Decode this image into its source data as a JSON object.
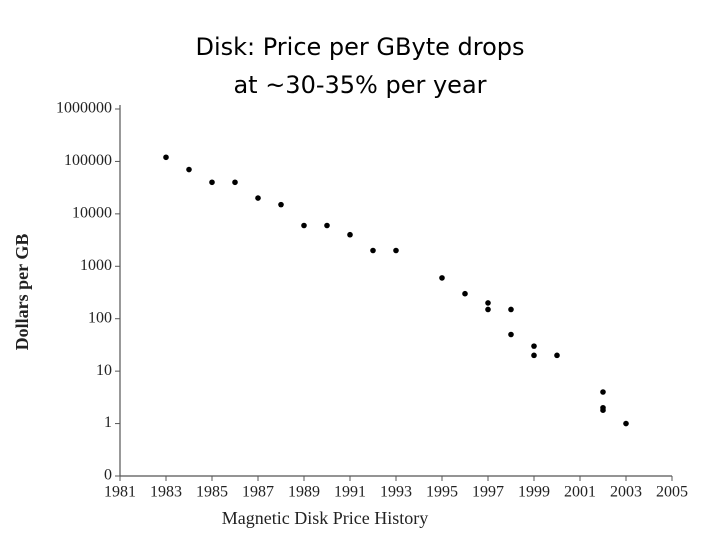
{
  "chart_data": {
    "type": "scatter",
    "title": [
      "Disk: Price per GByte drops",
      "at ~30-35% per year"
    ],
    "x_label": "Magnetic Disk Price History",
    "y_label": "Dollars per GB",
    "x": [
      1983,
      1984,
      1985,
      1986,
      1987,
      1988,
      1989,
      1990,
      1991,
      1992,
      1993,
      1995,
      1996,
      1997,
      1997,
      1998,
      1998,
      1999,
      1999,
      2000,
      2002,
      2002,
      2002,
      2003
    ],
    "values": [
      120000,
      70000,
      40000,
      40000,
      20000,
      15000,
      6000,
      6000,
      4000,
      2000,
      2000,
      600,
      300,
      200,
      150,
      150,
      50,
      30,
      20,
      20,
      4,
      2,
      1.8,
      1
    ],
    "color": "#000000",
    "log_y": true,
    "grid": false,
    "xlim": [
      1981,
      2005
    ],
    "xticks": [
      1981,
      1983,
      1985,
      1987,
      1989,
      1991,
      1993,
      1995,
      1997,
      1999,
      2001,
      2003,
      2005
    ],
    "ylim": [
      0.1,
      1000000
    ],
    "yticks": [
      {
        "value": 0.1,
        "label": "0"
      },
      1,
      10,
      100,
      1000,
      10000,
      100000,
      1000000
    ]
  }
}
